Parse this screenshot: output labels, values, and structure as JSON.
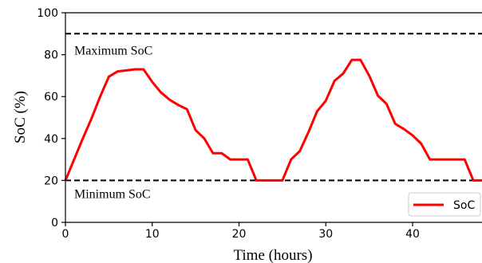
{
  "chart_data": {
    "type": "line",
    "title": "",
    "xlabel": "Time (hours)",
    "ylabel": "SoC (%)",
    "xlim": [
      0,
      48
    ],
    "ylim": [
      0,
      100
    ],
    "xticks": [
      0,
      10,
      20,
      30,
      40
    ],
    "yticks": [
      0,
      20,
      40,
      60,
      80,
      100
    ],
    "grid": false,
    "legend_position": "bottom-right",
    "series": [
      {
        "name": "SoC",
        "color": "#ff0000",
        "x": [
          0,
          1,
          2,
          3,
          4,
          5,
          6,
          7,
          8,
          9,
          10,
          11,
          12,
          13,
          14,
          15,
          16,
          17,
          18,
          19,
          20,
          21,
          22,
          23,
          24,
          25,
          26,
          27,
          28,
          29,
          30,
          31,
          32,
          33,
          34,
          35,
          36,
          37,
          38,
          39,
          40,
          41,
          42,
          43,
          44,
          45,
          46,
          47,
          48
        ],
        "y": [
          20,
          30,
          40,
          49.5,
          60,
          69.5,
          72,
          72.5,
          73,
          73,
          67,
          62,
          58.5,
          56,
          54,
          44,
          40,
          33,
          33,
          30,
          30,
          30,
          20,
          20,
          20,
          20,
          30,
          34,
          43,
          53,
          58,
          67.5,
          71,
          77.5,
          77.5,
          70,
          60.5,
          56.5,
          47,
          44.5,
          41.5,
          37.5,
          30,
          30,
          30,
          30,
          30,
          20,
          20
        ]
      }
    ],
    "reference_lines": [
      {
        "y": 90,
        "style": "dashed",
        "color": "#000000",
        "label": "Maximum SoC"
      },
      {
        "y": 20,
        "style": "dashed",
        "color": "#000000",
        "label": "Minimum SoC"
      }
    ],
    "legend": [
      {
        "label": "SoC",
        "color": "#ff0000"
      }
    ]
  }
}
